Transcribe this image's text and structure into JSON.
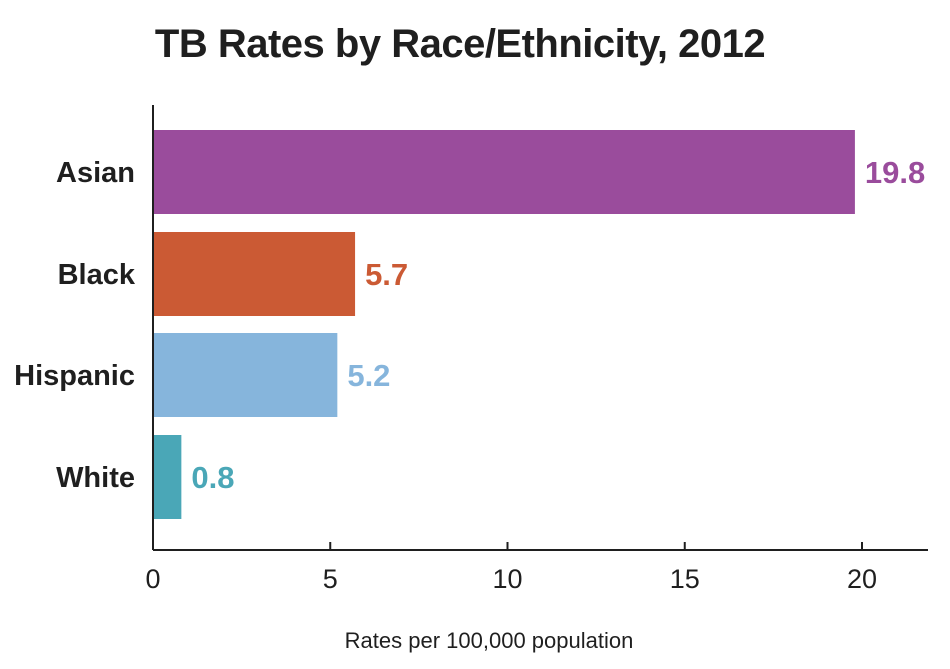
{
  "chart_data": {
    "type": "bar",
    "orientation": "horizontal",
    "title": "TB Rates by Race/Ethnicity, 2012",
    "xlabel": "Rates per 100,000 population",
    "ylabel": "",
    "categories": [
      "Asian",
      "Black",
      "Hispanic",
      "White"
    ],
    "values": [
      19.8,
      5.7,
      5.2,
      0.8
    ],
    "value_labels": [
      "19.8",
      "5.7",
      "5.2",
      "0.8"
    ],
    "colors": [
      "#9a4c9c",
      "#cb5a34",
      "#86b5dc",
      "#4aa7b7"
    ],
    "xlim": [
      0,
      22
    ],
    "xticks": [
      0,
      5,
      10,
      15,
      20
    ],
    "xtick_labels": [
      "0",
      "5",
      "10",
      "15",
      "20"
    ],
    "grid": false,
    "legend": "none"
  }
}
